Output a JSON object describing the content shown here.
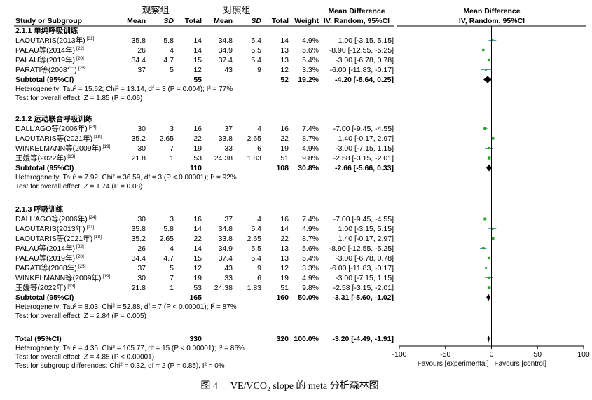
{
  "caption": {
    "label": "图 4",
    "text": "VE/VCO₂ slope 的 meta 分析森林图"
  },
  "header": {
    "group_exp": "观察组",
    "group_ctrl": "对照组",
    "study_col": "Study or Subgroup",
    "mean": "Mean",
    "sd": "SD",
    "total": "Total",
    "weight": "Weight",
    "md_title": "Mean Difference",
    "md_sub": "IV, Random, 95%CI",
    "plot_title": "Mean Difference",
    "plot_sub": "IV, Random, 95%CI"
  },
  "chart_data": {
    "type": "forest",
    "x_axis": {
      "range": [
        -100,
        100
      ],
      "ticks": [
        -100,
        -50,
        0,
        50,
        100
      ],
      "label_left": "Favours [experimental]",
      "label_right": "Favours [control]"
    },
    "subgroups": [
      {
        "title": "2.1.1 单纯呼吸训练",
        "studies": [
          {
            "name": "LAOUTARIS(2013年)",
            "ref": "[21]",
            "m1": "35.8",
            "sd1": "5.8",
            "n1": "14",
            "m2": "34.8",
            "sd2": "5.4",
            "n2": "14",
            "weight": "4.9%",
            "ci_text": "1.00 [-3.15, 5.15]",
            "md": 1.0,
            "lo": -3.15,
            "hi": 5.15,
            "color": "#27a327"
          },
          {
            "name": "PALAU等(2014年)",
            "ref": "[22]",
            "m1": "26",
            "sd1": "4",
            "n1": "14",
            "m2": "34.9",
            "sd2": "5.5",
            "n2": "13",
            "weight": "5.6%",
            "ci_text": "-8.90 [-12.55, -5.25]",
            "md": -8.9,
            "lo": -12.55,
            "hi": -5.25,
            "color": "#27a327"
          },
          {
            "name": "PALAU等(2019年)",
            "ref": "[20]",
            "m1": "34.4",
            "sd1": "4.7",
            "n1": "15",
            "m2": "37.4",
            "sd2": "5.4",
            "n2": "13",
            "weight": "5.4%",
            "ci_text": "-3.00 [-6.78, 0.78]",
            "md": -3.0,
            "lo": -6.78,
            "hi": 0.78,
            "color": "#27a327"
          },
          {
            "name": "PARATI等(2008年)",
            "ref": "[25]",
            "m1": "37",
            "sd1": "5",
            "n1": "12",
            "m2": "43",
            "sd2": "9",
            "n2": "12",
            "weight": "3.3%",
            "ci_text": "-6.00 [-11.83, -0.17]",
            "md": -6.0,
            "lo": -11.83,
            "hi": -0.17,
            "color": "#27a327"
          }
        ],
        "subtotal": {
          "label": "Subtotal (95%CI)",
          "n1": "55",
          "n2": "52",
          "weight": "19.2%",
          "ci_text": "-4.20 [-8.64, 0.25]",
          "md": -4.2,
          "lo": -8.64,
          "hi": 0.25
        },
        "heterogeneity": "Heterogeneity: Tau² = 15.62; Chi² = 13.14, df = 3 (P = 0.004); I² = 77%",
        "overall": "Test for overall effect: Z = 1.85 (P = 0.06)"
      },
      {
        "title": "2.1.2 运动联合呼吸训练",
        "studies": [
          {
            "name": "DALL’AGO等(2006年)",
            "ref": "[24]",
            "m1": "30",
            "sd1": "3",
            "n1": "16",
            "m2": "37",
            "sd2": "4",
            "n2": "16",
            "weight": "7.4%",
            "ci_text": "-7.00 [-9.45, -4.55]",
            "md": -7.0,
            "lo": -9.45,
            "hi": -4.55,
            "color": "#27a327"
          },
          {
            "name": "LAOUTARIS等(2021年)",
            "ref": "[18]",
            "m1": "35.2",
            "sd1": "2.65",
            "n1": "22",
            "m2": "33.8",
            "sd2": "2.65",
            "n2": "22",
            "weight": "8.7%",
            "ci_text": "1.40 [-0.17, 2.97]",
            "md": 1.4,
            "lo": -0.17,
            "hi": 2.97,
            "color": "#27a327"
          },
          {
            "name": "WINKELMANN等(2009年)",
            "ref": "[19]",
            "m1": "30",
            "sd1": "7",
            "n1": "19",
            "m2": "33",
            "sd2": "6",
            "n2": "19",
            "weight": "4.9%",
            "ci_text": "-3.00 [-7.15, 1.15]",
            "md": -3.0,
            "lo": -7.15,
            "hi": 1.15,
            "color": "#27a327"
          },
          {
            "name": "王媛等(2022年)",
            "ref": "[13]",
            "m1": "21.8",
            "sd1": "1",
            "n1": "53",
            "m2": "24.38",
            "sd2": "1.83",
            "n2": "51",
            "weight": "9.8%",
            "ci_text": "-2.58 [-3.15, -2.01]",
            "md": -2.58,
            "lo": -3.15,
            "hi": -2.01,
            "color": "#27a327"
          }
        ],
        "subtotal": {
          "label": "Subtotal (95%CI)",
          "n1": "110",
          "n2": "108",
          "weight": "30.8%",
          "ci_text": "-2.66 [-5.66, 0.33]",
          "md": -2.66,
          "lo": -5.66,
          "hi": 0.33
        },
        "heterogeneity": "Heterogeneity: Tau² = 7.92; Chi² = 36.59, df = 3 (P < 0.00001); I² = 92%",
        "overall": "Test for overall effect: Z = 1.74 (P = 0.08)"
      },
      {
        "title": "2.1.3 呼吸训练",
        "studies": [
          {
            "name": "DALL’AGO等(2006年)",
            "ref": "[24]",
            "m1": "30",
            "sd1": "3",
            "n1": "16",
            "m2": "37",
            "sd2": "4",
            "n2": "16",
            "weight": "7.4%",
            "ci_text": "-7.00 [-9.45, -4.55]",
            "md": -7.0,
            "lo": -9.45,
            "hi": -4.55,
            "color": "#27a327"
          },
          {
            "name": "LAOUTARIS(2013年)",
            "ref": "[21]",
            "m1": "35.8",
            "sd1": "5.8",
            "n1": "14",
            "m2": "34.8",
            "sd2": "5.4",
            "n2": "14",
            "weight": "4.9%",
            "ci_text": "1.00 [-3.15, 5.15]",
            "md": 1.0,
            "lo": -3.15,
            "hi": 5.15,
            "color": "#27a327"
          },
          {
            "name": "LAOUTARIS等(2021年)",
            "ref": "[18]",
            "m1": "35.2",
            "sd1": "2.65",
            "n1": "22",
            "m2": "33.8",
            "sd2": "2.65",
            "n2": "22",
            "weight": "8.7%",
            "ci_text": "1.40 [-0.17, 2.97]",
            "md": 1.4,
            "lo": -0.17,
            "hi": 2.97,
            "color": "#27a327"
          },
          {
            "name": "PALAU等(2014年)",
            "ref": "[22]",
            "m1": "26",
            "sd1": "4",
            "n1": "14",
            "m2": "34.9",
            "sd2": "5.5",
            "n2": "13",
            "weight": "5.6%",
            "ci_text": "-8.90 [-12.55, -5.25]",
            "md": -8.9,
            "lo": -12.55,
            "hi": -5.25,
            "color": "#27a327"
          },
          {
            "name": "PALAU等(2019年)",
            "ref": "[20]",
            "m1": "34.4",
            "sd1": "4.7",
            "n1": "15",
            "m2": "37.4",
            "sd2": "5.4",
            "n2": "13",
            "weight": "5.4%",
            "ci_text": "-3.00 [-6.78, 0.78]",
            "md": -3.0,
            "lo": -6.78,
            "hi": 0.78,
            "color": "#27a327"
          },
          {
            "name": "PARATI等(2008年)",
            "ref": "[25]",
            "m1": "37",
            "sd1": "5",
            "n1": "12",
            "m2": "43",
            "sd2": "9",
            "n2": "12",
            "weight": "3.3%",
            "ci_text": "-6.00 [-11.83, -0.17]",
            "md": -6.0,
            "lo": -11.83,
            "hi": -0.17,
            "color": "#27a327"
          },
          {
            "name": "WINKELMANN等(2009年)",
            "ref": "[19]",
            "m1": "30",
            "sd1": "7",
            "n1": "19",
            "m2": "33",
            "sd2": "6",
            "n2": "19",
            "weight": "4.9%",
            "ci_text": "-3.00 [-7.15, 1.15]",
            "md": -3.0,
            "lo": -7.15,
            "hi": 1.15,
            "color": "#27a327"
          },
          {
            "name": "王媛等(2022年)",
            "ref": "[13]",
            "m1": "21.8",
            "sd1": "1",
            "n1": "53",
            "m2": "24.38",
            "sd2": "1.83",
            "n2": "51",
            "weight": "9.8%",
            "ci_text": "-2.58 [-3.15, -2.01]",
            "md": -2.58,
            "lo": -3.15,
            "hi": -2.01,
            "color": "#27a327"
          }
        ],
        "subtotal": {
          "label": "Subtotal (95%CI)",
          "n1": "165",
          "n2": "160",
          "weight": "50.0%",
          "ci_text": "-3.31 [-5.60, -1.02]",
          "md": -3.31,
          "lo": -5.6,
          "hi": -1.02
        },
        "heterogeneity": "Heterogeneity: Tau² = 8.03; Chi² = 52.88, df = 7 (P < 0.00001); I² = 87%",
        "overall": "Test for overall effect: Z = 2.84 (P = 0.005)"
      }
    ],
    "total": {
      "label": "Total (95%CI)",
      "n1": "330",
      "n2": "320",
      "weight": "100.0%",
      "ci_text": "-3.20 [-4.49, -1.91]",
      "md": -3.2,
      "lo": -4.49,
      "hi": -1.91
    },
    "footer": [
      "Heterogeneity: Tau² = 4.35; Chi² = 105.77, df = 15 (P < 0.00001); I² = 86%",
      "Test for overall effect: Z = 4.85 (P < 0.00001)",
      "Test for subgroup differences: Chi² = 0.32, df = 2 (P = 0.85), I² = 0%"
    ],
    "colors": {
      "study": "#27a327",
      "line": "#5a8fc9",
      "diamond": "#000000"
    }
  }
}
